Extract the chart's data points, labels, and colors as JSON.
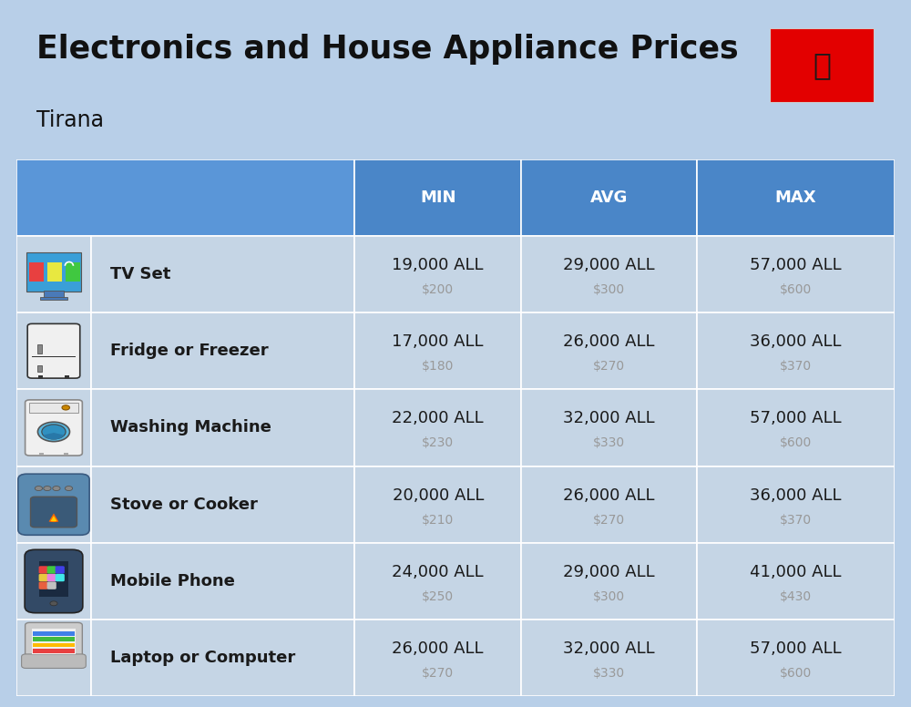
{
  "title_display": "Electronics and House Appliance Prices",
  "subtitle": "Tirana",
  "bg_color": "#b8cfe8",
  "header_bg": "#4a86c8",
  "header_bg_left": "#5a96d8",
  "header_text_color": "#ffffff",
  "row_bg": "#c5d5e5",
  "item_name_color": "#1a1a1a",
  "value_color": "#1a1a1a",
  "sub_value_color": "#999999",
  "columns": [
    "MIN",
    "AVG",
    "MAX"
  ],
  "rows": [
    {
      "name": "TV Set",
      "min_all": "19,000 ALL",
      "min_usd": "$200",
      "avg_all": "29,000 ALL",
      "avg_usd": "$300",
      "max_all": "57,000 ALL",
      "max_usd": "$600"
    },
    {
      "name": "Fridge or Freezer",
      "min_all": "17,000 ALL",
      "min_usd": "$180",
      "avg_all": "26,000 ALL",
      "avg_usd": "$270",
      "max_all": "36,000 ALL",
      "max_usd": "$370"
    },
    {
      "name": "Washing Machine",
      "min_all": "22,000 ALL",
      "min_usd": "$230",
      "avg_all": "32,000 ALL",
      "avg_usd": "$330",
      "max_all": "57,000 ALL",
      "max_usd": "$600"
    },
    {
      "name": "Stove or Cooker",
      "min_all": "20,000 ALL",
      "min_usd": "$210",
      "avg_all": "26,000 ALL",
      "avg_usd": "$270",
      "max_all": "36,000 ALL",
      "max_usd": "$370"
    },
    {
      "name": "Mobile Phone",
      "min_all": "24,000 ALL",
      "min_usd": "$250",
      "avg_all": "29,000 ALL",
      "avg_usd": "$300",
      "max_all": "41,000 ALL",
      "max_usd": "$430"
    },
    {
      "name": "Laptop or Computer",
      "min_all": "26,000 ALL",
      "min_usd": "$270",
      "avg_all": "32,000 ALL",
      "avg_usd": "$330",
      "max_all": "57,000 ALL",
      "max_usd": "$600"
    }
  ],
  "col_bounds": [
    0.0,
    0.085,
    0.385,
    0.575,
    0.775,
    1.0
  ],
  "title_fontsize": 25,
  "subtitle_fontsize": 17,
  "header_fontsize": 13,
  "name_fontsize": 13,
  "value_fontsize": 13,
  "subvalue_fontsize": 10
}
